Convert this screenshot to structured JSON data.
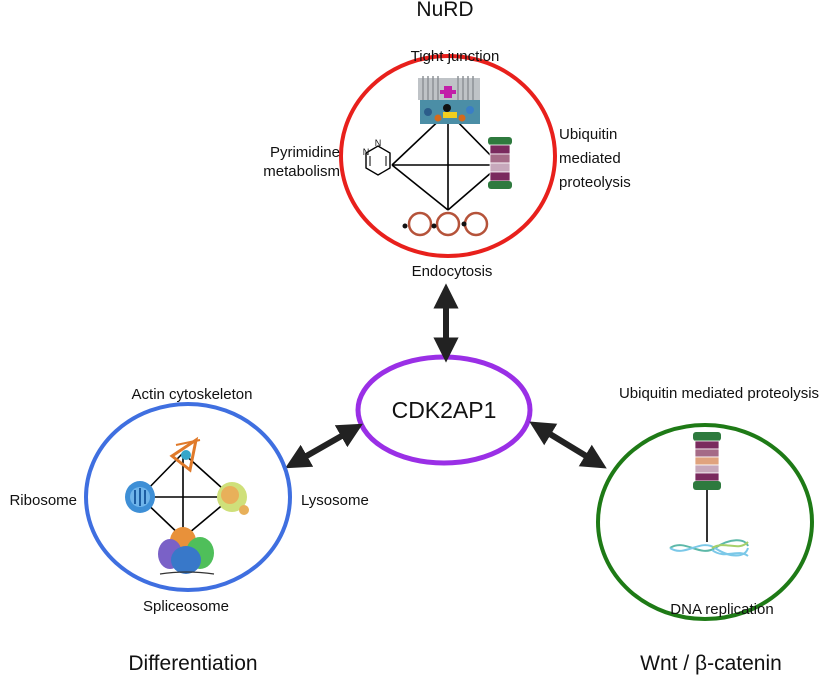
{
  "top_title": "NuRD",
  "center_node": "CDK2AP1",
  "top_cluster": {
    "top": "Tight junction",
    "left": [
      "Pyrimidine",
      "metabolism"
    ],
    "right": [
      "Ubiquitin",
      "mediated",
      "proteolysis"
    ],
    "bottom": "Endocytosis",
    "color": "#e8201c"
  },
  "left_cluster": {
    "top": "Actin cytoskeleton",
    "left": "Ribosome",
    "right": "Lysosome",
    "bottom": "Spliceosome",
    "caption": "Differentiation",
    "color": "#3f6fe0"
  },
  "right_cluster": {
    "top": "Ubiquitin mediated proteolysis",
    "bottom": "DNA replication",
    "caption": "Wnt / β-catenin",
    "color": "#1e7a16"
  },
  "center_color": "#9a2fe6",
  "icons": [
    "tight-junction-icon",
    "pyrimidine-icon",
    "proteasome-icon",
    "endocytosis-icon",
    "actin-icon",
    "ribosome-icon",
    "lysosome-icon",
    "spliceosome-icon",
    "dna-icon"
  ]
}
